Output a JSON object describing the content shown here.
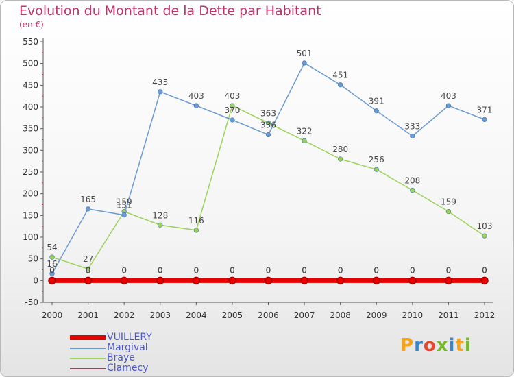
{
  "header": {
    "title": "Evolution du Montant de la Dette par Habitant",
    "subtitle": "(en €)"
  },
  "brand": {
    "text": "Proxiti",
    "colors": [
      "#f4a31b",
      "#3d86c6",
      "#e8462c",
      "#76b82a",
      "#3d86c6",
      "#f4a31b",
      "#76b82a"
    ]
  },
  "chart_data": {
    "type": "line",
    "title": "Evolution du Montant de la Dette par Habitant",
    "subtitle": "(en €)",
    "xlabel": "",
    "ylabel": "",
    "x": [
      "2000",
      "2001",
      "2002",
      "2003",
      "2004",
      "2005",
      "2006",
      "2007",
      "2008",
      "2009",
      "2010",
      "2011",
      "2012"
    ],
    "ylim": [
      -50,
      550
    ],
    "yticks": [
      -50,
      0,
      50,
      100,
      150,
      200,
      250,
      300,
      350,
      400,
      450,
      500,
      550
    ],
    "grid": false,
    "legend_position": "bottom-left",
    "series": [
      {
        "name": "VUILLERY",
        "color": "#e60000",
        "values": [
          0,
          0,
          0,
          0,
          0,
          0,
          0,
          0,
          0,
          0,
          0,
          0,
          0
        ],
        "labels": [
          "0",
          "0",
          "0",
          "0",
          "0",
          "0",
          "0",
          "0",
          "0",
          "0",
          "0",
          "0",
          "0"
        ]
      },
      {
        "name": "Margival",
        "color": "#6a9ad2",
        "values": [
          16,
          165,
          151,
          435,
          403,
          370,
          336,
          501,
          451,
          391,
          333,
          403,
          371
        ],
        "labels": [
          "16",
          "165",
          "151",
          "435",
          "403",
          "370",
          "336",
          "501",
          "451",
          "391",
          "333",
          "403",
          "371"
        ]
      },
      {
        "name": "Braye",
        "color": "#9ad25a",
        "values": [
          54,
          27,
          159,
          128,
          116,
          403,
          363,
          322,
          280,
          256,
          208,
          159,
          103
        ],
        "labels": [
          "54",
          "27",
          "159",
          "128",
          "116",
          "403",
          "363",
          "322",
          "280",
          "256",
          "208",
          "159",
          "103"
        ]
      },
      {
        "name": "Clamecy",
        "color": "#8a4a5a",
        "values": [
          0,
          0,
          0,
          0,
          0,
          0,
          0,
          0,
          0,
          0,
          0,
          0,
          0
        ],
        "labels": [
          "0",
          "0",
          "0",
          "0",
          "0",
          "0",
          "0",
          "0",
          "0",
          "0",
          "0",
          "0",
          "0"
        ]
      }
    ]
  }
}
